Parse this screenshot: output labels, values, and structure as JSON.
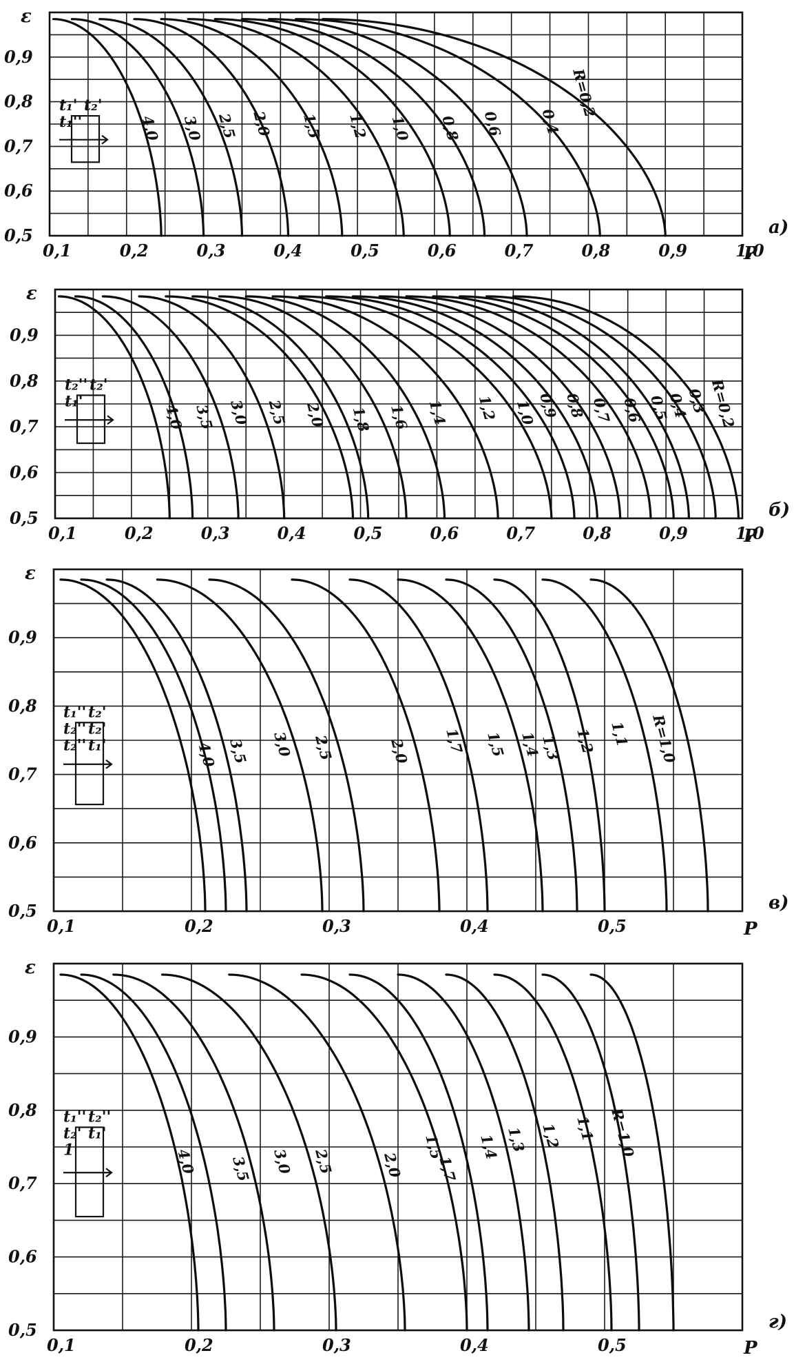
{
  "chart_data": [
    {
      "type": "line",
      "panel_label": "а)",
      "ylabel": "ε",
      "xlabel": "P",
      "xlim": [
        0.1,
        1.0
      ],
      "ylim": [
        0.5,
        1.0
      ],
      "x_ticks": [
        "0,1",
        "0,2",
        "0,3",
        "0,4",
        "0,5",
        "0,6",
        "0,7",
        "0,8",
        "0,9",
        "1,0"
      ],
      "y_ticks": [
        "0,5",
        "0,6",
        "0,7",
        "0,8",
        "0,9"
      ],
      "grid": true,
      "schema_labels": [
        "t₁'",
        "t₂'",
        "t₁''"
      ],
      "series": [
        {
          "name": "4,0",
          "p_end": 0.245,
          "label_pos": [
            0.22,
            0.765
          ]
        },
        {
          "name": "3,0",
          "p_end": 0.3,
          "label_pos": [
            0.275,
            0.765
          ]
        },
        {
          "name": "2,5",
          "p_end": 0.35,
          "label_pos": [
            0.32,
            0.77
          ]
        },
        {
          "name": "2,0",
          "p_end": 0.41,
          "label_pos": [
            0.365,
            0.775
          ]
        },
        {
          "name": "1,5",
          "p_end": 0.48,
          "label_pos": [
            0.43,
            0.77
          ]
        },
        {
          "name": "1,2",
          "p_end": 0.56,
          "label_pos": [
            0.49,
            0.77
          ]
        },
        {
          "name": "1,0",
          "p_end": 0.62,
          "label_pos": [
            0.545,
            0.765
          ]
        },
        {
          "name": "0,8",
          "p_end": 0.665,
          "label_pos": [
            0.61,
            0.765
          ]
        },
        {
          "name": "0,6",
          "p_end": 0.72,
          "label_pos": [
            0.665,
            0.775
          ]
        },
        {
          "name": "0,4",
          "p_end": 0.815,
          "label_pos": [
            0.74,
            0.78
          ]
        },
        {
          "name": "R=0,2",
          "p_end": 0.9,
          "label_pos": [
            0.78,
            0.87
          ]
        }
      ]
    },
    {
      "type": "line",
      "panel_label": "б)",
      "ylabel": "ε",
      "xlabel": "P",
      "xlim": [
        0.1,
        1.0
      ],
      "ylim": [
        0.5,
        1.0
      ],
      "x_ticks": [
        "0,1",
        "0,2",
        "0,3",
        "0,4",
        "0,5",
        "0,6",
        "0,7",
        "0,8",
        "0,9",
        "1,0"
      ],
      "y_ticks": [
        "0,5",
        "0,6",
        "0,7",
        "0,8",
        "0,9"
      ],
      "grid": true,
      "schema_labels": [
        "t₂''",
        "t₂'",
        "t₁'"
      ],
      "series": [
        {
          "name": "4,0",
          "p_end": 0.25,
          "label_pos": [
            0.245,
            0.745
          ]
        },
        {
          "name": "3,5",
          "p_end": 0.28,
          "label_pos": [
            0.285,
            0.745
          ]
        },
        {
          "name": "3,0",
          "p_end": 0.34,
          "label_pos": [
            0.33,
            0.755
          ]
        },
        {
          "name": "2,5",
          "p_end": 0.4,
          "label_pos": [
            0.38,
            0.755
          ]
        },
        {
          "name": "2,0",
          "p_end": 0.49,
          "label_pos": [
            0.43,
            0.75
          ]
        },
        {
          "name": "1,8",
          "p_end": 0.51,
          "label_pos": [
            0.49,
            0.74
          ]
        },
        {
          "name": "1,6",
          "p_end": 0.56,
          "label_pos": [
            0.54,
            0.745
          ]
        },
        {
          "name": "1,4",
          "p_end": 0.61,
          "label_pos": [
            0.59,
            0.755
          ]
        },
        {
          "name": "1,2",
          "p_end": 0.68,
          "label_pos": [
            0.655,
            0.765
          ]
        },
        {
          "name": "1,0",
          "p_end": 0.75,
          "label_pos": [
            0.705,
            0.755
          ]
        },
        {
          "name": "0,9",
          "p_end": 0.78,
          "label_pos": [
            0.735,
            0.77
          ]
        },
        {
          "name": "0,8",
          "p_end": 0.81,
          "label_pos": [
            0.77,
            0.77
          ]
        },
        {
          "name": "0,7",
          "p_end": 0.84,
          "label_pos": [
            0.805,
            0.76
          ]
        },
        {
          "name": "0,6",
          "p_end": 0.88,
          "label_pos": [
            0.845,
            0.76
          ]
        },
        {
          "name": "0,5",
          "p_end": 0.91,
          "label_pos": [
            0.88,
            0.765
          ]
        },
        {
          "name": "0,4",
          "p_end": 0.93,
          "label_pos": [
            0.905,
            0.77
          ]
        },
        {
          "name": "0,3",
          "p_end": 0.965,
          "label_pos": [
            0.93,
            0.78
          ]
        },
        {
          "name": "R=0,2",
          "p_end": 0.995,
          "label_pos": [
            0.96,
            0.8
          ]
        }
      ]
    },
    {
      "type": "line",
      "panel_label": "в)",
      "ylabel": "ε",
      "xlabel": "P",
      "xlim": [
        0.1,
        0.6
      ],
      "ylim": [
        0.5,
        1.0
      ],
      "x_ticks": [
        "0,1",
        "0,2",
        "0,3",
        "0,4",
        "0,5"
      ],
      "y_ticks": [
        "0,5",
        "0,6",
        "0,7",
        "0,8",
        "0,9"
      ],
      "grid": true,
      "schema_labels": [
        "t₁''",
        "t₂'",
        "t₂''",
        "t₂'",
        "t₂''",
        "t₁'"
      ],
      "series": [
        {
          "name": "4,0",
          "p_end": 0.21,
          "label_pos": [
            0.205,
            0.745
          ]
        },
        {
          "name": "3,5",
          "p_end": 0.225,
          "label_pos": [
            0.228,
            0.75
          ]
        },
        {
          "name": "3,0",
          "p_end": 0.24,
          "label_pos": [
            0.26,
            0.76
          ]
        },
        {
          "name": "2,5",
          "p_end": 0.295,
          "label_pos": [
            0.29,
            0.755
          ]
        },
        {
          "name": "2,0",
          "p_end": 0.325,
          "label_pos": [
            0.345,
            0.75
          ]
        },
        {
          "name": "1,7",
          "p_end": 0.38,
          "label_pos": [
            0.385,
            0.765
          ]
        },
        {
          "name": "1,5",
          "p_end": 0.415,
          "label_pos": [
            0.415,
            0.76
          ]
        },
        {
          "name": "1,4",
          "p_end": 0.455,
          "label_pos": [
            0.44,
            0.76
          ]
        },
        {
          "name": "1,3",
          "p_end": 0.48,
          "label_pos": [
            0.455,
            0.755
          ]
        },
        {
          "name": "1,2",
          "p_end": 0.5,
          "label_pos": [
            0.48,
            0.765
          ]
        },
        {
          "name": "1,1",
          "p_end": 0.545,
          "label_pos": [
            0.505,
            0.775
          ]
        },
        {
          "name": "R=1,0",
          "p_end": 0.575,
          "label_pos": [
            0.535,
            0.785
          ]
        }
      ]
    },
    {
      "type": "line",
      "panel_label": "г)",
      "ylabel": "ε",
      "xlabel": "P",
      "xlim": [
        0.1,
        0.6
      ],
      "ylim": [
        0.5,
        1.0
      ],
      "x_ticks": [
        "0,1",
        "0,2",
        "0,3",
        "0,4",
        "0,5"
      ],
      "y_ticks": [
        "0,5",
        "0,6",
        "0,7",
        "0,8",
        "0,9"
      ],
      "grid": true,
      "schema_labels": [
        "t₁''",
        "t₂''",
        "t₂'",
        "t₁'",
        "1"
      ],
      "series": [
        {
          "name": "4,0",
          "p_end": 0.205,
          "label_pos": [
            0.19,
            0.745
          ]
        },
        {
          "name": "3,5",
          "p_end": 0.225,
          "label_pos": [
            0.23,
            0.735
          ]
        },
        {
          "name": "3,0",
          "p_end": 0.26,
          "label_pos": [
            0.26,
            0.745
          ]
        },
        {
          "name": "2,5",
          "p_end": 0.305,
          "label_pos": [
            0.29,
            0.745
          ]
        },
        {
          "name": "2,0",
          "p_end": 0.355,
          "label_pos": [
            0.34,
            0.74
          ]
        },
        {
          "name": "1,7",
          "p_end": 0.4,
          "label_pos": [
            0.38,
            0.735
          ]
        },
        {
          "name": "1,5",
          "p_end": 0.415,
          "label_pos": [
            0.37,
            0.765
          ]
        },
        {
          "name": "1,4",
          "p_end": 0.445,
          "label_pos": [
            0.41,
            0.765
          ]
        },
        {
          "name": "1,3",
          "p_end": 0.47,
          "label_pos": [
            0.43,
            0.775
          ]
        },
        {
          "name": "1,2",
          "p_end": 0.505,
          "label_pos": [
            0.455,
            0.78
          ]
        },
        {
          "name": "1,1",
          "p_end": 0.525,
          "label_pos": [
            0.48,
            0.79
          ]
        },
        {
          "name": "R=1,0",
          "p_end": 0.55,
          "label_pos": [
            0.505,
            0.8
          ]
        }
      ]
    }
  ]
}
